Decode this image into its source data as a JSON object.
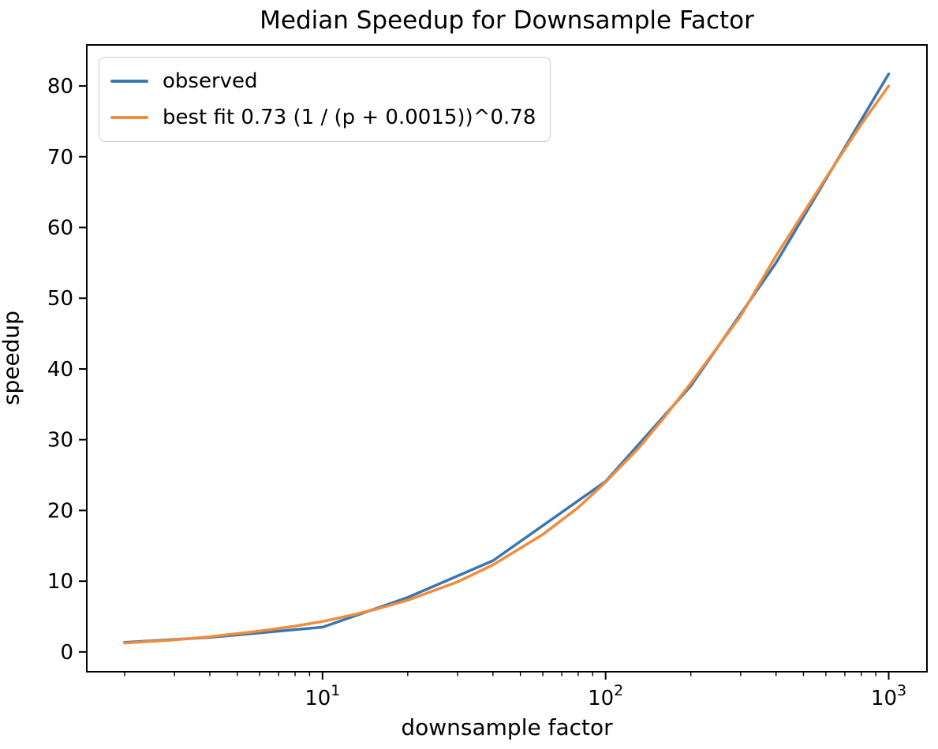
{
  "figure": {
    "title": "Median Speedup for Downsample Factor",
    "xlabel": "downsample factor",
    "ylabel": "speedup",
    "background": "#ffffff",
    "spine_color": "#000000",
    "tick_label_color": "#000000"
  },
  "legend": {
    "position": "upper left",
    "items": [
      {
        "label": "observed",
        "color": "#3b77af"
      },
      {
        "label": "best fit 0.73 (1 / (p + 0.0015))^0.78",
        "color": "#f08c3c"
      }
    ]
  },
  "chart_data": {
    "type": "line",
    "title": "Median Speedup for Downsample Factor",
    "xlabel": "downsample factor",
    "ylabel": "speedup",
    "x_scale": "log",
    "y_scale": "linear",
    "xlim": [
      1.47,
      1365
    ],
    "ylim": [
      -2.8,
      85.8
    ],
    "x_major_ticks": [
      10,
      100,
      1000
    ],
    "x_minor_tick_multiples": [
      2,
      3,
      4,
      5,
      6,
      7,
      8,
      9
    ],
    "y_ticks": [
      0,
      10,
      20,
      30,
      40,
      50,
      60,
      70,
      80
    ],
    "grid": false,
    "legend_position": "upper left",
    "series": [
      {
        "name": "observed",
        "color": "#3b77af",
        "x": [
          2,
          4,
          10,
          20,
          40,
          100,
          200,
          400,
          1000
        ],
        "y": [
          1.35,
          2.05,
          3.5,
          7.7,
          12.9,
          24.1,
          37.6,
          55.0,
          81.7
        ]
      },
      {
        "name": "best fit 0.73 (1 / (p + 0.0015))^0.78",
        "color": "#f08c3c",
        "x": [
          2,
          3,
          4,
          6,
          8,
          10,
          13,
          16,
          20,
          30,
          40,
          60,
          80,
          100,
          130,
          160,
          200,
          300,
          400,
          600,
          800,
          1000
        ],
        "y": [
          1.25,
          1.7,
          2.15,
          2.95,
          3.65,
          4.3,
          5.3,
          6.2,
          7.3,
          9.9,
          12.3,
          16.6,
          20.4,
          24.0,
          28.7,
          33.0,
          38.0,
          47.5,
          56.0,
          67.0,
          74.6,
          80.0
        ]
      }
    ]
  }
}
